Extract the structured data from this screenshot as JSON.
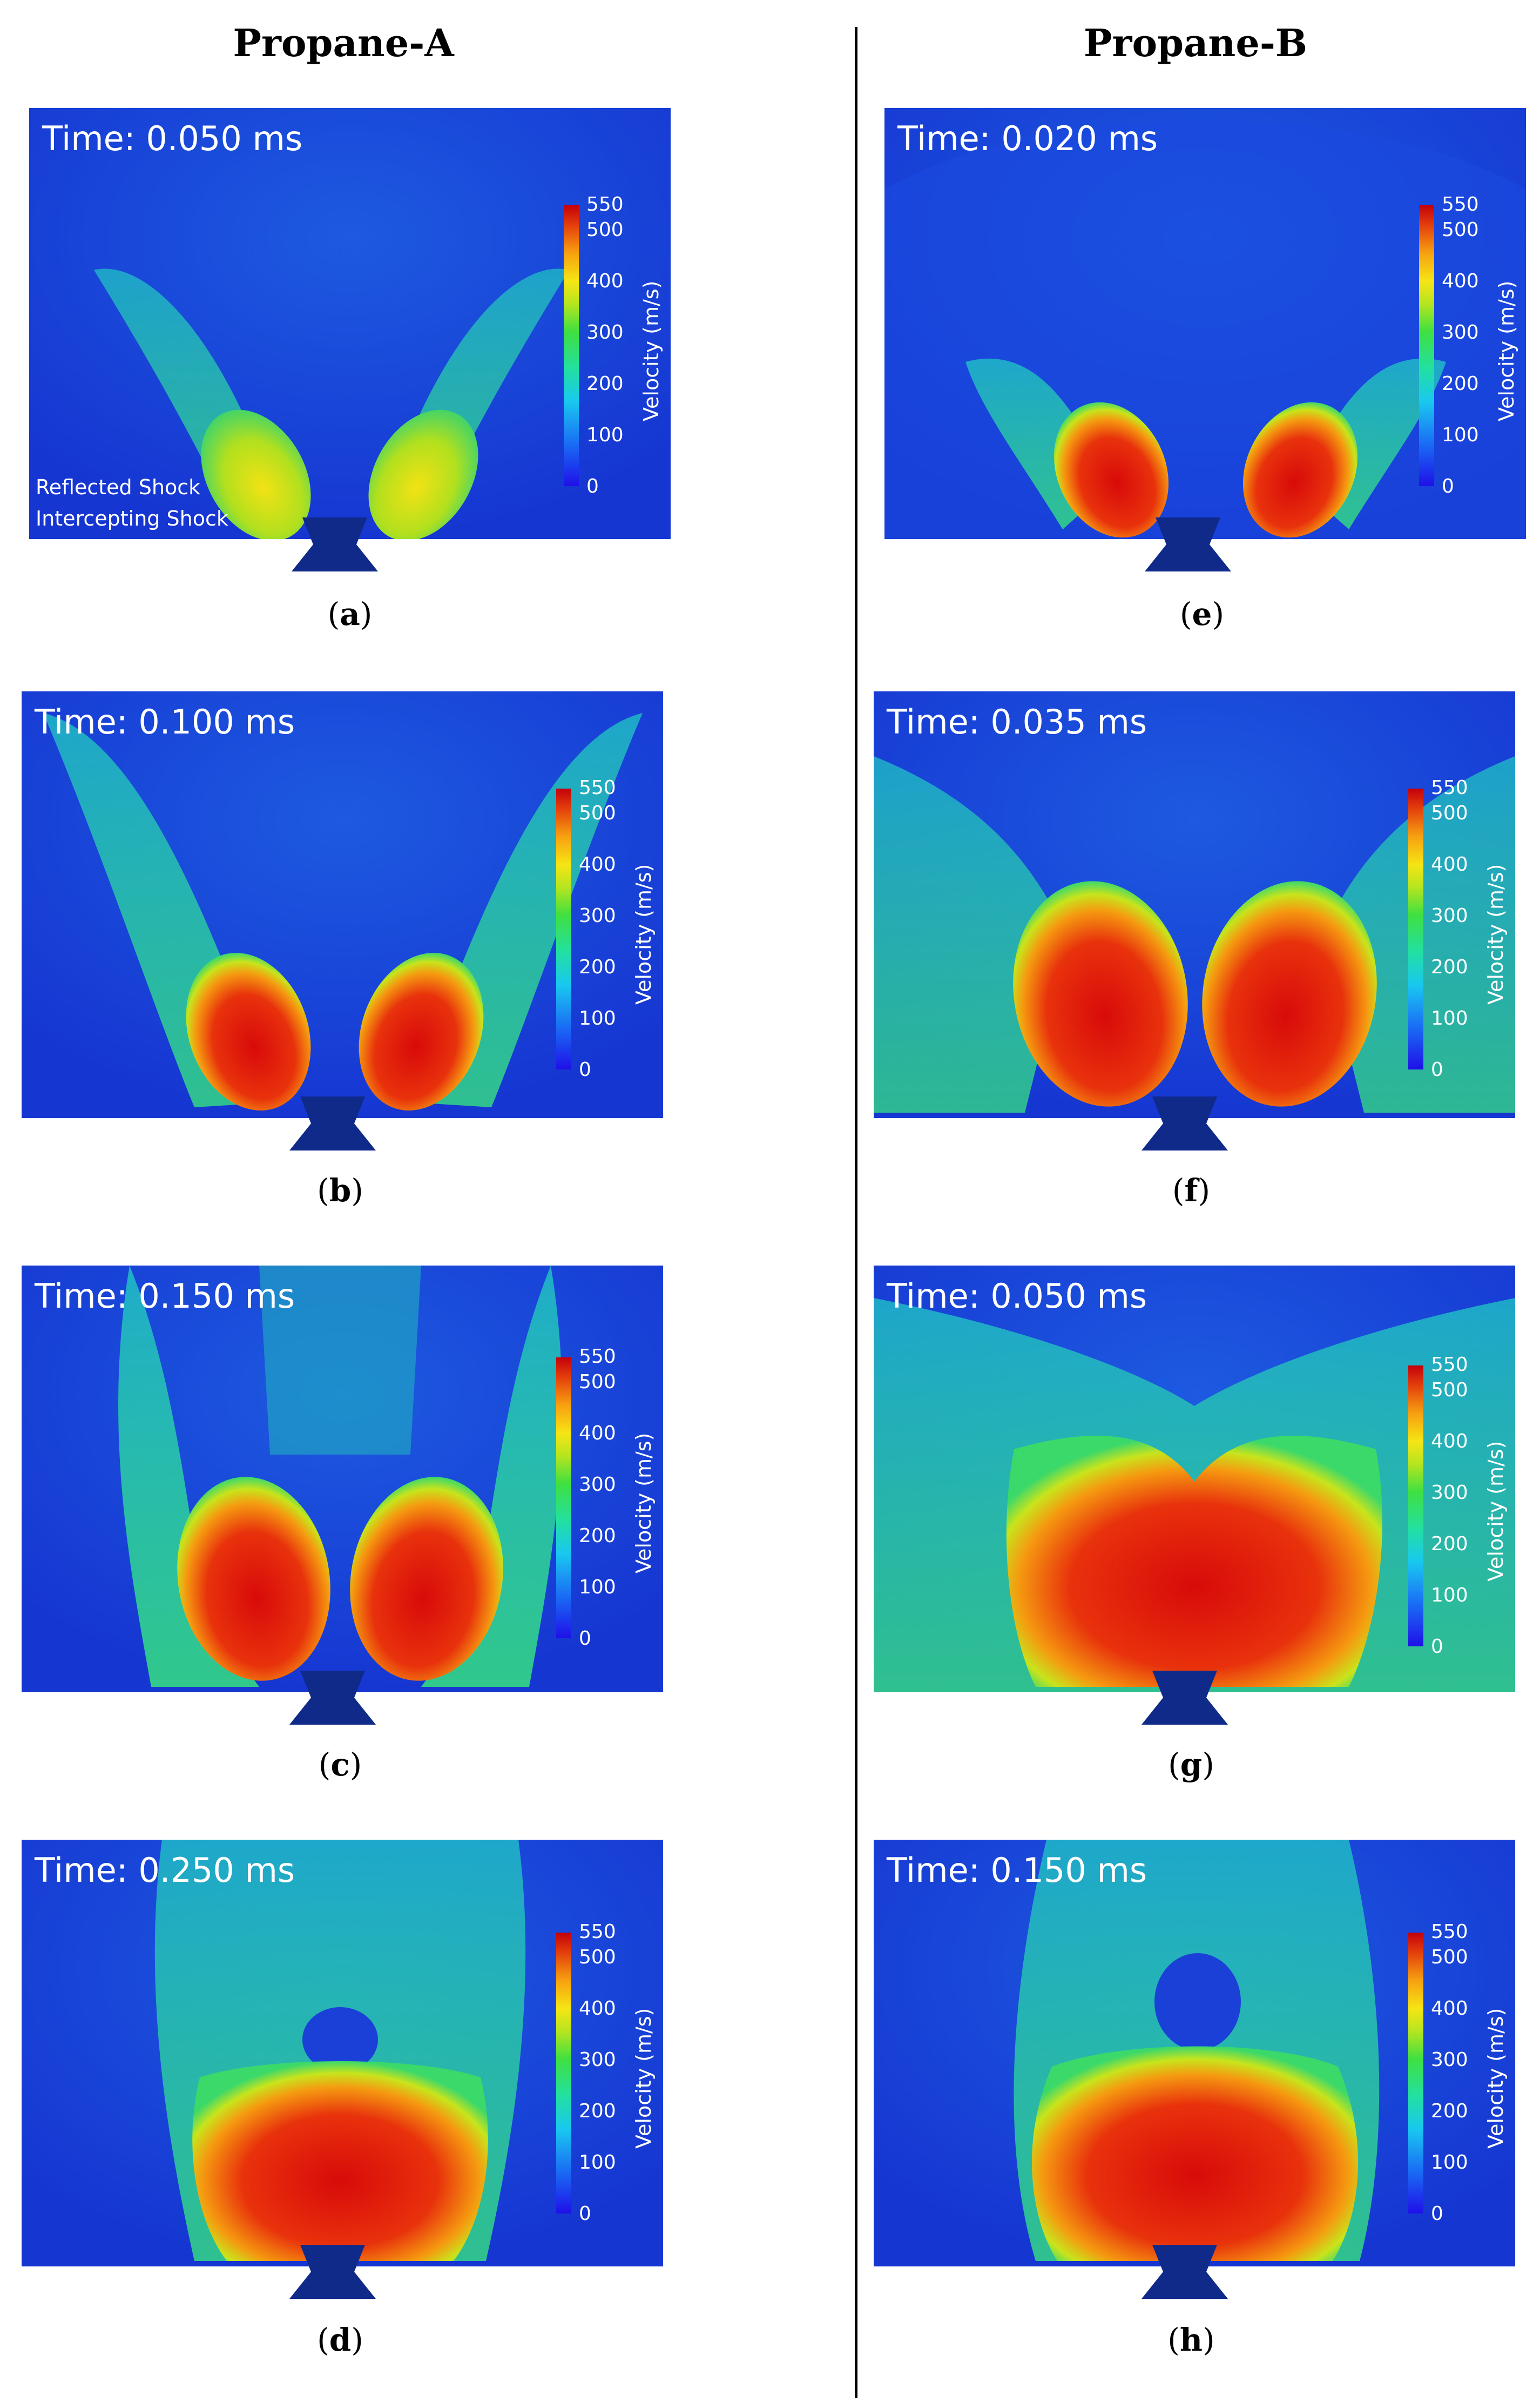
{
  "figure": {
    "columns": [
      {
        "title": "Propane-A"
      },
      {
        "title": "Propane-B"
      }
    ],
    "colorbar": {
      "title": "Velocity (m/s)",
      "ticks": [
        "550",
        "500",
        "400",
        "300",
        "200",
        "100",
        "0"
      ]
    },
    "panels": [
      {
        "time": "Time: 0.050 ms",
        "label": "a"
      },
      {
        "time": "Time: 0.100 ms",
        "label": "b"
      },
      {
        "time": "Time: 0.150 ms",
        "label": "c"
      },
      {
        "time": "Time: 0.250 ms",
        "label": "d"
      },
      {
        "time": "Time: 0.020 ms",
        "label": "e"
      },
      {
        "time": "Time: 0.035 ms",
        "label": "f"
      },
      {
        "time": "Time: 0.050 ms",
        "label": "g"
      },
      {
        "time": "Time: 0.150 ms",
        "label": "h"
      }
    ],
    "annotations": {
      "reflected": "Reflected Shock",
      "intercepting": "Intercepting Shock"
    }
  }
}
